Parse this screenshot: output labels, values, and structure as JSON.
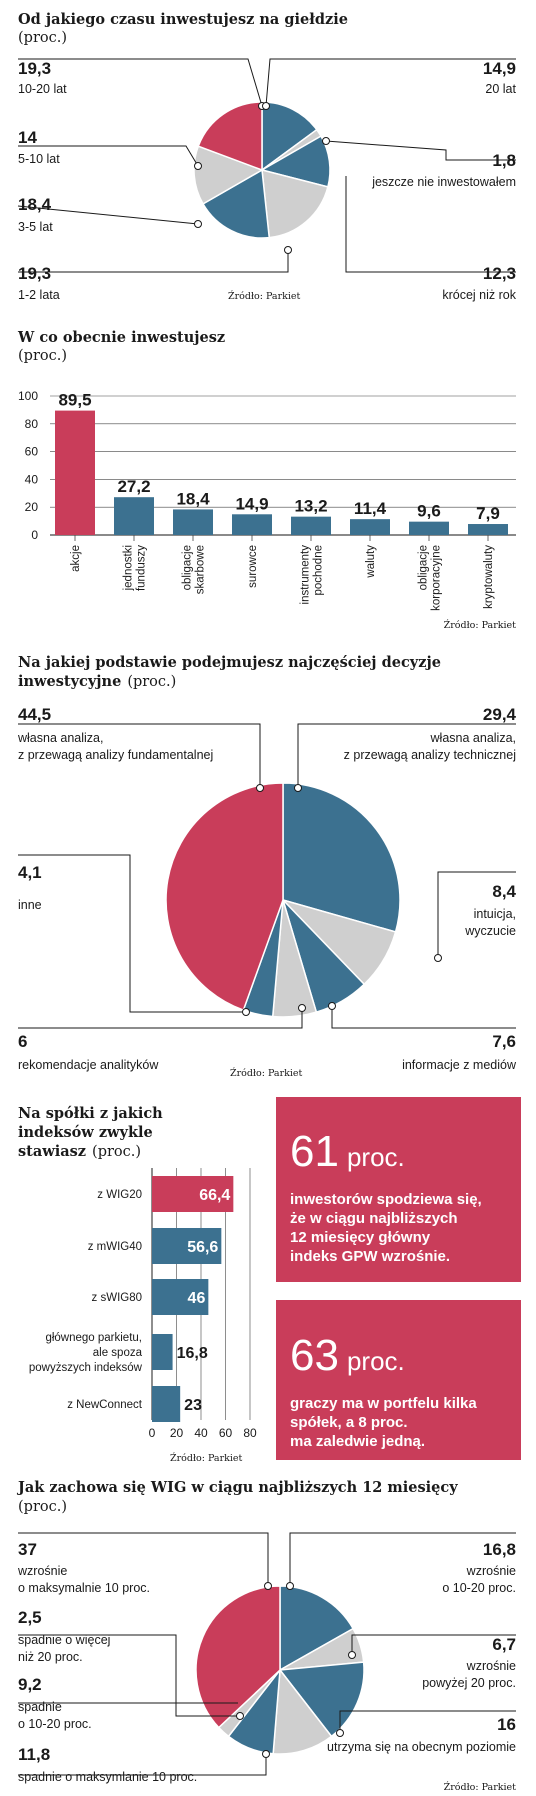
{
  "source": "Źródło: Parkiet",
  "colors": {
    "blue": "#3c7190",
    "red": "#c93d5a",
    "gray": "#cfcfcf",
    "axis": "#1a1a1a"
  },
  "chart_data": [
    {
      "type": "pie",
      "title": "Od jakiego czasu inwestujesz na giełdzie",
      "subtitle": "(proc.)",
      "slices": [
        {
          "label": "20 lat",
          "value": 14.9,
          "color": "blue"
        },
        {
          "label": "jeszcze nie inwestowałem",
          "value": 1.8,
          "color": "gray"
        },
        {
          "label": "krócej niż rok",
          "value": 12.3,
          "color": "blue"
        },
        {
          "label": "1-2 lata",
          "value": 19.3,
          "color": "gray"
        },
        {
          "label": "3-5 lat",
          "value": 18.4,
          "color": "blue"
        },
        {
          "label": "5-10 lat",
          "value": 14,
          "color": "gray"
        },
        {
          "label": "10-20 lat",
          "value": 19.3,
          "color": "red"
        }
      ],
      "value_labels": [
        "14,9",
        "1,8",
        "12,3",
        "19,3",
        "18,4",
        "14",
        "19,3"
      ],
      "labels": [
        "20 lat",
        "jeszcze nie inwestowałem",
        "krócej niż rok",
        "1-2 lata",
        "3-5 lat",
        "5-10 lat",
        "10-20 lat"
      ]
    },
    {
      "type": "bar",
      "title": "W co obecnie inwestujesz",
      "subtitle": "(proc.)",
      "categories": [
        "akcje",
        "jednostki funduszy",
        "obligacje skarbowe",
        "surowce",
        "instrumenty pochodne",
        "waluty",
        "obligacje korporacyjne",
        "kryptowaluty"
      ],
      "values": [
        89.5,
        27.2,
        18.4,
        14.9,
        13.2,
        11.4,
        9.6,
        7.9
      ],
      "value_labels": [
        "89,5",
        "27,2",
        "18,4",
        "14,9",
        "13,2",
        "11,4",
        "9,6",
        "7,9"
      ],
      "ylim": [
        0,
        100
      ],
      "yticks": [
        0,
        20,
        40,
        60,
        80,
        100
      ],
      "bar_colors": [
        "red",
        "blue",
        "blue",
        "blue",
        "blue",
        "blue",
        "blue",
        "blue"
      ]
    },
    {
      "type": "pie",
      "title": "Na jakiej podstawie podejmujesz najczęściej decyzje inwestycyjne",
      "subtitle": "(proc.)",
      "slices": [
        {
          "label": "własna analiza, z przewagą analizy technicznej",
          "value": 29.4,
          "color": "blue"
        },
        {
          "label": "intuicja, wyczucie",
          "value": 8.4,
          "color": "gray"
        },
        {
          "label": "informacje z mediów",
          "value": 7.6,
          "color": "blue"
        },
        {
          "label": "rekomendacje analityków",
          "value": 6,
          "color": "gray"
        },
        {
          "label": "inne",
          "value": 4.1,
          "color": "blue"
        },
        {
          "label": "własna analiza, z przewagą analizy fundamentalnej",
          "value": 44.5,
          "color": "red"
        }
      ],
      "value_labels": [
        "29,4",
        "8,4",
        "7,6",
        "6",
        "4,1",
        "44,5"
      ]
    },
    {
      "type": "bar",
      "orientation": "horizontal",
      "title": "Na spółki z jakich indeksów zwykle stawiasz",
      "subtitle": "(proc.)",
      "categories": [
        "z WIG20",
        "z mWIG40",
        "z sWIG80",
        "głównego parkietu, ale spoza powyższych indeksów",
        "z NewConnect"
      ],
      "category_lines": [
        [
          "z WIG20"
        ],
        [
          "z mWIG40"
        ],
        [
          "z sWIG80"
        ],
        [
          "głównego parkietu,",
          "ale spoza",
          "powyższych indeksów"
        ],
        [
          "z NewConnect"
        ]
      ],
      "values": [
        66.4,
        56.6,
        46,
        16.8,
        23
      ],
      "value_labels": [
        "66,4",
        "56,6",
        "46",
        "16,8",
        "23"
      ],
      "xlim": [
        0,
        80
      ],
      "xticks": [
        0,
        20,
        40,
        60,
        80
      ],
      "bar_colors": [
        "red",
        "blue",
        "blue",
        "blue",
        "blue"
      ]
    },
    {
      "type": "pie",
      "title": "Jak zachowa się WIG w ciągu najbliższych 12 miesięcy",
      "subtitle": "(proc.)",
      "slices": [
        {
          "label": "wzrośnie o 10-20 proc.",
          "value": 16.8,
          "color": "blue"
        },
        {
          "label": "wzrośnie powyżej 20 proc.",
          "value": 6.7,
          "color": "gray"
        },
        {
          "label": "utrzyma się na obecnym poziomie",
          "value": 16,
          "color": "blue"
        },
        {
          "label": "spadnie o maksymlanie 10 proc.",
          "value": 11.8,
          "color": "gray"
        },
        {
          "label": "spadnie o 10-20 proc.",
          "value": 9.2,
          "color": "blue"
        },
        {
          "label": "spadnie o więcej niż 20 proc.",
          "value": 2.5,
          "color": "gray"
        },
        {
          "label": "wzrośnie o maksymalnie 10 proc.",
          "value": 37,
          "color": "red"
        }
      ],
      "value_labels": [
        "16,8",
        "6,7",
        "16",
        "11,8",
        "9,2",
        "2,5",
        "37"
      ]
    }
  ],
  "pie1": {
    "title": "Od jakiego czasu inwestujesz na giełdzie",
    "subtitle": "(proc.)",
    "labels": {
      "v_1020": "19,3",
      "l_1020": "10-20 lat",
      "v_20": "14,9",
      "l_20": "20 lat",
      "v_510": "14",
      "l_510": "5-10 lat",
      "v_nie": "1,8",
      "l_nie": "jeszcze nie inwestowałem",
      "v_35": "18,4",
      "l_35": "3-5 lat",
      "v_12": "19,3",
      "l_12": "1-2 lata",
      "v_rok": "12,3",
      "l_rok": "krócej niż rok"
    }
  },
  "bars1": {
    "title": "W co obecnie inwestujesz",
    "subtitle": "(proc.)",
    "cat_lines": [
      [
        "akcje"
      ],
      [
        "jednostki",
        "funduszy"
      ],
      [
        "obligacje",
        "skarbowe"
      ],
      [
        "surowce"
      ],
      [
        "instrumenty",
        "pochodne"
      ],
      [
        "waluty"
      ],
      [
        "obligacje",
        "korporacyjne"
      ],
      [
        "kryptowaluty"
      ]
    ]
  },
  "pie2": {
    "title_line1": "Na jakiej podstawie podejmujesz najczęściej decyzje",
    "title_line2": "inwestycyjne",
    "subtitle": "(proc.)",
    "labels": {
      "v_fund": "44,5",
      "l_fund1": "własna analiza,",
      "l_fund2": "z przewagą analizy fundamentalnej",
      "v_tech": "29,4",
      "l_tech1": "własna analiza,",
      "l_tech2": "z przewagą analizy technicznej",
      "v_inne": "4,1",
      "l_inne": "inne",
      "v_int": "8,4",
      "l_int1": "intuicja,",
      "l_int2": "wyczucie",
      "v_rek": "6",
      "l_rek": "rekomendacje analityków",
      "v_med": "7,6",
      "l_med": "informacje z mediów"
    }
  },
  "hbars": {
    "title_line1": "Na spółki z jakich",
    "title_line2": "indeksów zwykle",
    "title_line3": "stawiasz",
    "subtitle": "(proc.)"
  },
  "box1": {
    "big": "61",
    "unit": "proc.",
    "lines": [
      "inwestorów spodziewa się,",
      "że w ciągu najbliższych",
      "12 miesięcy główny",
      "indeks GPW wzrośnie."
    ]
  },
  "box2": {
    "big": "63",
    "unit": "proc.",
    "lines": [
      "graczy ma w portfelu kilka",
      "spółek, a 8 proc.",
      "ma zaledwie jedną."
    ]
  },
  "pie3": {
    "title": "Jak zachowa się WIG w ciągu najbliższych 12 miesięcy",
    "subtitle": "(proc.)",
    "labels": {
      "v_max10": "37",
      "l_max10a": "wzrośnie",
      "l_max10b": "o maksymalnie 10 proc.",
      "v_1020": "16,8",
      "l_1020a": "wzrośnie",
      "l_1020b": "o 10-20 proc.",
      "v_sp20": "2,5",
      "l_sp20a": "spadnie o więcej",
      "l_sp20b": "niż 20 proc.",
      "v_pow20": "6,7",
      "l_pow20a": "wzrośnie",
      "l_pow20b": "powyżej 20 proc.",
      "v_sp1020": "9,2",
      "l_sp1020a": "spadnie",
      "l_sp1020b": "o 10-20 proc.",
      "v_utrz": "16",
      "l_utrz": "utrzyma się na obecnym poziomie",
      "v_spmax": "11,8",
      "l_spmax": "spadnie o maksymlanie 10 proc."
    }
  }
}
